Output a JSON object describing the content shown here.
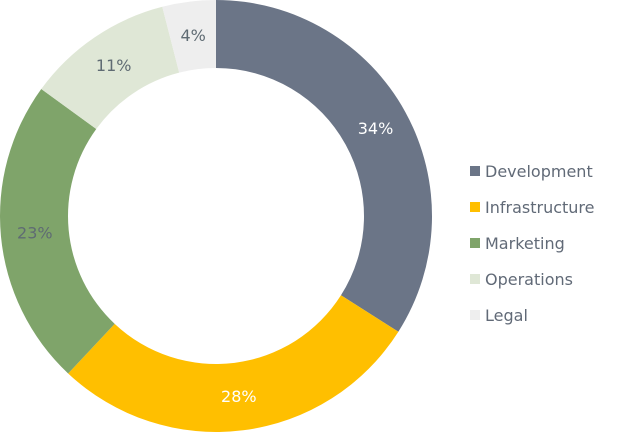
{
  "chart_data": {
    "type": "pie",
    "donut": true,
    "legend_position": "right",
    "categories": [
      "Development",
      "Infrastructure",
      "Marketing",
      "Operations",
      "Legal"
    ],
    "values": [
      34,
      28,
      23,
      11,
      4
    ],
    "labels": [
      "34%",
      "28%",
      "23%",
      "11%",
      "4%"
    ],
    "colors": [
      "#6b7587",
      "#ffbf00",
      "#7fa46a",
      "#dfe7d6",
      "#eeeeee"
    ],
    "label_colors": [
      "#ffffff",
      "#ffffff",
      "#5f6b73",
      "#5f6b73",
      "#5f6b73"
    ]
  }
}
